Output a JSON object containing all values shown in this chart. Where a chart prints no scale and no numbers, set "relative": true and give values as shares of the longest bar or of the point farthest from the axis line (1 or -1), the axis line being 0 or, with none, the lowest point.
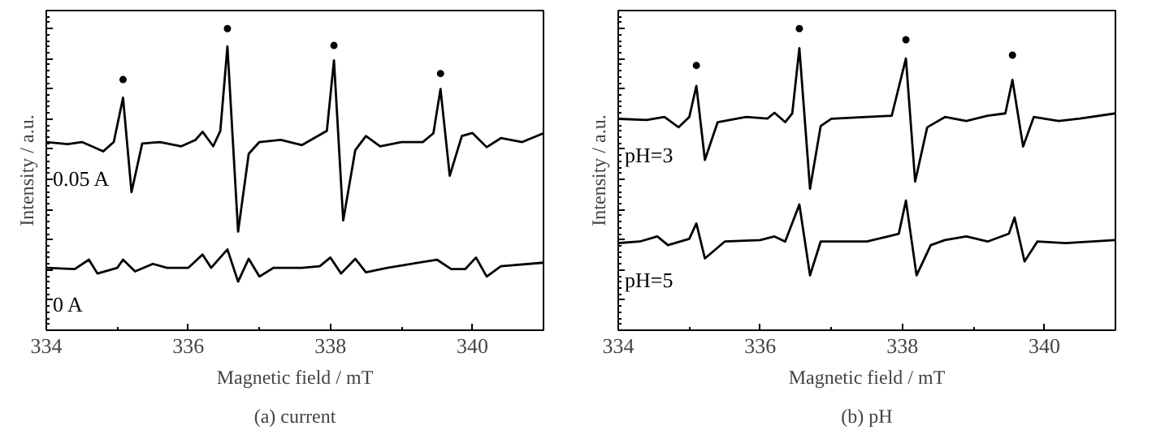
{
  "chart_data": [
    {
      "type": "line",
      "xlabel": "Magnetic field / mT",
      "ylabel": "Intensity / a.u.",
      "relative": true,
      "xlim": [
        334,
        341
      ],
      "xticks": [
        334,
        336,
        338,
        340
      ],
      "legend": "left",
      "grid": false,
      "line_style": "solid",
      "annotations": [
        "(a) current"
      ],
      "series": [
        {
          "name": "0.05 A",
          "color": "#000000",
          "x": [
            334.0,
            334.3,
            334.5,
            334.6,
            334.8,
            334.95,
            335.08,
            335.2,
            335.35,
            335.6,
            335.9,
            336.1,
            336.2,
            336.35,
            336.45,
            336.55,
            336.7,
            336.85,
            337.0,
            337.3,
            337.6,
            337.8,
            337.95,
            338.05,
            338.18,
            338.35,
            338.5,
            338.7,
            339.0,
            339.3,
            339.45,
            339.55,
            339.68,
            339.85,
            340.0,
            340.2,
            340.4,
            340.7,
            341.0
          ],
          "values": [
            0.624,
            0.617,
            0.624,
            0.614,
            0.593,
            0.624,
            0.771,
            0.458,
            0.619,
            0.624,
            0.61,
            0.631,
            0.658,
            0.61,
            0.661,
            0.941,
            0.327,
            0.585,
            0.624,
            0.631,
            0.614,
            0.641,
            0.661,
            0.895,
            0.364,
            0.597,
            0.644,
            0.61,
            0.624,
            0.624,
            0.653,
            0.8,
            0.512,
            0.644,
            0.654,
            0.607,
            0.637,
            0.624,
            0.653
          ]
        },
        {
          "name": "0 A",
          "color": "#000000",
          "x": [
            334.0,
            334.4,
            334.6,
            334.72,
            335.0,
            335.08,
            335.25,
            335.5,
            335.7,
            336.0,
            336.2,
            336.32,
            336.55,
            336.7,
            336.85,
            337.0,
            337.2,
            337.6,
            337.85,
            338.0,
            338.15,
            338.35,
            338.5,
            338.8,
            339.5,
            339.7,
            339.9,
            340.05,
            340.2,
            340.4,
            341.0
          ],
          "values": [
            0.207,
            0.203,
            0.234,
            0.188,
            0.207,
            0.234,
            0.195,
            0.22,
            0.207,
            0.207,
            0.251,
            0.207,
            0.268,
            0.161,
            0.237,
            0.178,
            0.207,
            0.207,
            0.212,
            0.241,
            0.188,
            0.237,
            0.192,
            0.207,
            0.234,
            0.203,
            0.203,
            0.241,
            0.178,
            0.212,
            0.224
          ]
        },
        {
          "type": "scatter",
          "marker": "circle",
          "color": "#000000",
          "x": [
            335.08,
            336.55,
            338.05,
            339.55
          ],
          "values": [
            0.831,
            1.0,
            0.944,
            0.851
          ]
        }
      ]
    },
    {
      "type": "line",
      "xlabel": "Magnetic field / mT",
      "ylabel": "Intensity / a.u.",
      "relative": true,
      "xlim": [
        334,
        341
      ],
      "xticks": [
        334,
        336,
        338,
        340
      ],
      "legend": "left",
      "grid": false,
      "line_style": "solid",
      "annotations": [
        "(b) pH"
      ],
      "series": [
        {
          "name": "pH=3",
          "color": "#000000",
          "x": [
            334.0,
            334.4,
            334.65,
            334.85,
            335.0,
            335.1,
            335.22,
            335.4,
            335.8,
            336.1,
            336.2,
            336.35,
            336.45,
            336.55,
            336.7,
            336.85,
            337.0,
            337.5,
            337.85,
            338.05,
            338.18,
            338.35,
            338.6,
            338.9,
            339.2,
            339.45,
            339.55,
            339.7,
            339.85,
            340.2,
            340.5,
            341.0
          ],
          "values": [
            0.701,
            0.697,
            0.707,
            0.673,
            0.707,
            0.81,
            0.565,
            0.69,
            0.707,
            0.702,
            0.721,
            0.69,
            0.719,
            0.935,
            0.469,
            0.677,
            0.701,
            0.707,
            0.711,
            0.901,
            0.493,
            0.673,
            0.707,
            0.694,
            0.711,
            0.719,
            0.83,
            0.609,
            0.707,
            0.694,
            0.702,
            0.719
          ]
        },
        {
          "name": "pH=5",
          "color": "#000000",
          "x": [
            334.0,
            334.3,
            334.55,
            334.7,
            335.0,
            335.1,
            335.22,
            335.5,
            336.0,
            336.2,
            336.35,
            336.55,
            336.7,
            336.85,
            337.5,
            337.8,
            337.95,
            338.05,
            338.2,
            338.4,
            338.6,
            338.9,
            339.2,
            339.5,
            339.58,
            339.72,
            339.9,
            340.3,
            341.0
          ],
          "values": [
            0.289,
            0.294,
            0.311,
            0.282,
            0.303,
            0.354,
            0.238,
            0.294,
            0.299,
            0.311,
            0.294,
            0.417,
            0.182,
            0.294,
            0.294,
            0.311,
            0.32,
            0.43,
            0.182,
            0.282,
            0.299,
            0.311,
            0.294,
            0.32,
            0.374,
            0.228,
            0.294,
            0.289,
            0.299
          ]
        },
        {
          "type": "scatter",
          "marker": "circle",
          "color": "#000000",
          "x": [
            335.1,
            336.55,
            338.05,
            339.55
          ],
          "values": [
            0.878,
            1.0,
            0.963,
            0.912
          ]
        }
      ]
    }
  ]
}
